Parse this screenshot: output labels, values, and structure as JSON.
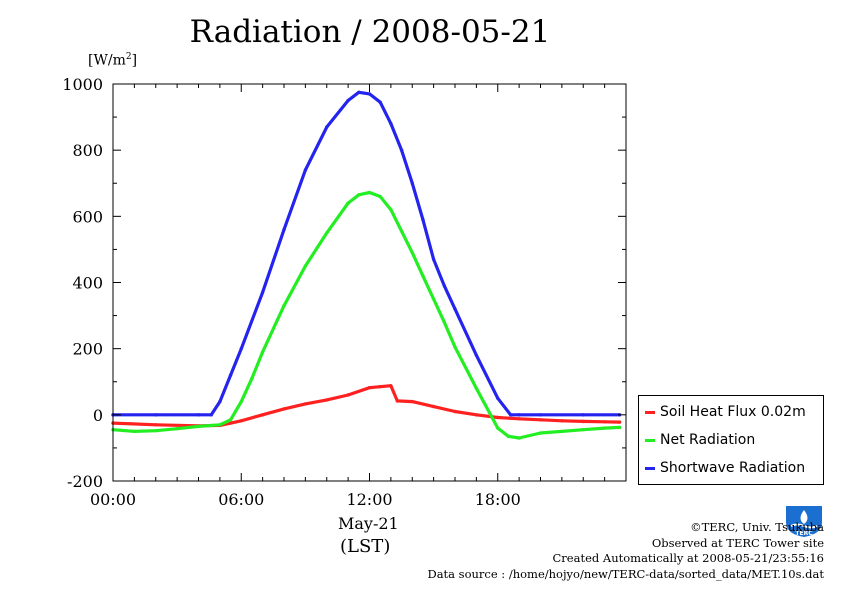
{
  "chart_data": {
    "type": "line",
    "title": "Radiation / 2008-05-21",
    "ylabel_unit": "[W/m²]",
    "ylim": [
      -200,
      1000
    ],
    "yticks": [
      -200,
      0,
      200,
      400,
      600,
      800,
      1000
    ],
    "xlim": [
      0,
      24
    ],
    "xticks": [
      {
        "value": 0,
        "label": "00:00"
      },
      {
        "value": 6,
        "label": "06:00"
      },
      {
        "value": 12,
        "label": "12:00"
      },
      {
        "value": 18,
        "label": "18:00"
      }
    ],
    "xlabel_date": "May-21",
    "xlabel_zone": "(LST)",
    "grid": false,
    "legend_position": "right",
    "series": [
      {
        "name": "Soil Heat Flux 0.02m",
        "color": "#ff2020",
        "x": [
          0,
          2,
          4,
          5,
          6,
          7,
          8,
          9,
          10,
          11,
          12,
          12.5,
          13.0,
          13.3,
          14,
          15,
          16,
          17,
          18,
          19,
          20,
          21,
          22,
          23,
          23.7
        ],
        "y": [
          -25,
          -30,
          -33,
          -32,
          -18,
          0,
          18,
          33,
          45,
          60,
          82,
          85,
          88,
          42,
          40,
          25,
          10,
          0,
          -8,
          -12,
          -15,
          -18,
          -20,
          -21,
          -22
        ]
      },
      {
        "name": "Net Radiation",
        "color": "#22ee22",
        "x": [
          0,
          1,
          2,
          3,
          4,
          5,
          5.5,
          6,
          6.5,
          7,
          8,
          9,
          10,
          11,
          11.5,
          12,
          12.5,
          13,
          13.5,
          14,
          14.5,
          15,
          15.5,
          16,
          17,
          18,
          18.5,
          19,
          20,
          21,
          22,
          23,
          23.7
        ],
        "y": [
          -45,
          -50,
          -48,
          -42,
          -35,
          -30,
          -15,
          40,
          110,
          190,
          330,
          450,
          550,
          640,
          665,
          672,
          660,
          620,
          555,
          490,
          420,
          350,
          280,
          205,
          80,
          -40,
          -65,
          -70,
          -55,
          -50,
          -45,
          -40,
          -38
        ]
      },
      {
        "name": "Shortwave Radiation",
        "color": "#2424ee",
        "x": [
          0,
          2,
          4,
          4.6,
          5,
          5.5,
          6,
          7,
          8,
          9,
          10,
          11,
          11.5,
          12,
          12.5,
          13,
          13.5,
          14,
          14.5,
          15,
          15.5,
          16,
          17,
          18,
          18.6,
          19,
          20,
          22,
          23.7
        ],
        "y": [
          0,
          0,
          0,
          0,
          40,
          120,
          200,
          370,
          560,
          740,
          870,
          950,
          975,
          970,
          945,
          880,
          800,
          700,
          590,
          470,
          390,
          320,
          180,
          50,
          0,
          0,
          0,
          0,
          0
        ]
      }
    ]
  },
  "legend": {
    "items": [
      {
        "label": "Soil Heat Flux 0.02m",
        "color": "#ff2020"
      },
      {
        "label": "Net Radiation",
        "color": "#22ee22"
      },
      {
        "label": "Shortwave Radiation",
        "color": "#2424ee"
      }
    ]
  },
  "credits": {
    "copyright": "©TERC, Univ. Tsukuba",
    "site": "Observed at TERC Tower site",
    "created": "Created Automatically at 2008-05-21/23:55:16",
    "source": "Data source : /home/hojyo/new/TERC-data/sorted_data/MET.10s.dat"
  },
  "logo": {
    "text": "TERC",
    "color": "#1a6fd0"
  }
}
